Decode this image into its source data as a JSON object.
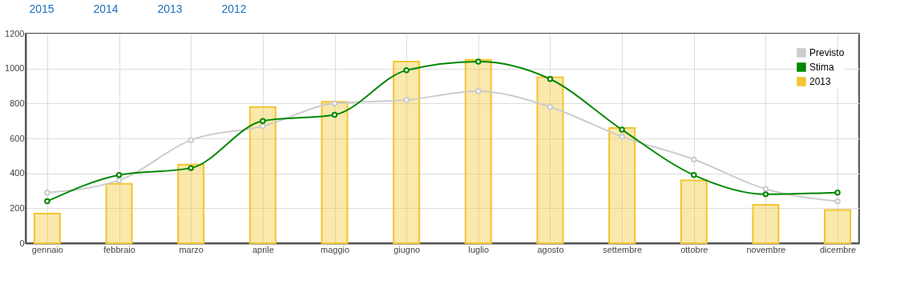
{
  "chart_data": {
    "type": "bar",
    "annotations": [
      "2015",
      "2014",
      "2013",
      "2012"
    ],
    "categories": [
      "gennaio",
      "febbraio",
      "marzo",
      "aprile",
      "maggio",
      "giugno",
      "luglio",
      "agosto",
      "settembre",
      "ottobre",
      "novembre",
      "dicembre"
    ],
    "series": [
      {
        "name": "Previsto",
        "type": "line",
        "color": "#cccccc",
        "values": [
          290,
          360,
          590,
          670,
          800,
          820,
          870,
          780,
          610,
          480,
          310,
          240
        ]
      },
      {
        "name": "Stima",
        "type": "line",
        "color": "#008800",
        "values": [
          240,
          390,
          430,
          700,
          735,
          990,
          1040,
          940,
          650,
          390,
          280,
          290
        ]
      },
      {
        "name": "2013",
        "color": "#f2c530",
        "values": [
          170,
          340,
          450,
          780,
          810,
          1040,
          1050,
          950,
          660,
          360,
          220,
          190
        ]
      }
    ],
    "ylim": [
      0,
      1200
    ],
    "yticks": [
      0,
      200,
      400,
      600,
      800,
      1000,
      1200
    ],
    "grid": true,
    "legend": "top right",
    "marker": "circle"
  }
}
